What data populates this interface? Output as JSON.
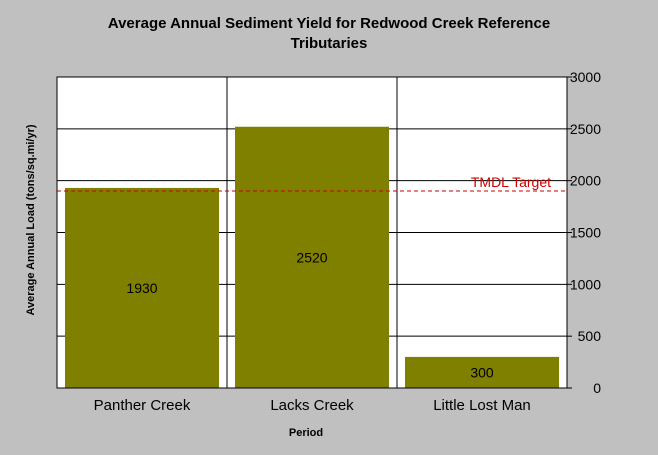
{
  "chart_data": {
    "type": "bar",
    "title_line1": "Average Annual Sediment Yield for Redwood Creek Reference",
    "title_line2": "Tributaries",
    "xlabel": "Period",
    "ylabel": "Average Annual Load (tons/sq.mi/yr)",
    "categories": [
      "Panther Creek",
      "Lacks Creek",
      "Little Lost Man"
    ],
    "values": [
      1930,
      2520,
      300
    ],
    "value_labels": [
      "1930",
      "2520",
      "300"
    ],
    "ylim": [
      0,
      3000
    ],
    "yticks": [
      0,
      500,
      1000,
      1500,
      2000,
      2500,
      3000
    ],
    "ytick_labels": [
      "0",
      "500",
      "1000",
      "1500",
      "2000",
      "2500",
      "3000"
    ],
    "y_axis_side": "right",
    "grid": true,
    "reference_line": {
      "label": "TMDL Target",
      "value": 1900,
      "color": "#cc0000"
    },
    "bar_color": "#808000",
    "plot_background": "#ffffff"
  }
}
